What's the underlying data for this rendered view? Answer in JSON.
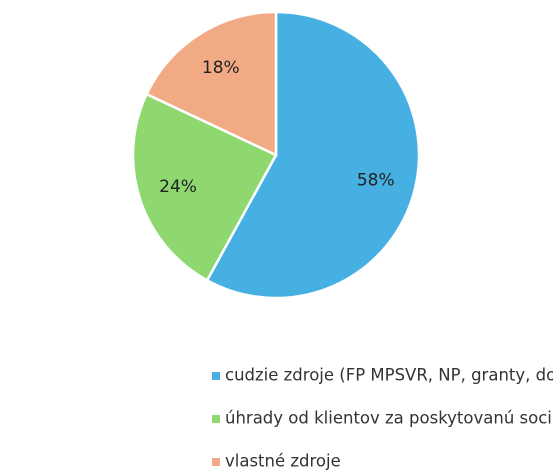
{
  "chart_data": {
    "type": "pie",
    "categories": [
      "cudzie zdroje (FP MPSVR, NP, granty, dotácie... )",
      "úhrady od klientov za poskytovanú sociálnu službu",
      "vlastné zdroje"
    ],
    "values": [
      58,
      24,
      18
    ],
    "value_labels": [
      "58%",
      "24%",
      "18%"
    ],
    "colors": [
      "#47b0e2",
      "#8fd870",
      "#f2aa84"
    ],
    "legend": "bottom"
  }
}
